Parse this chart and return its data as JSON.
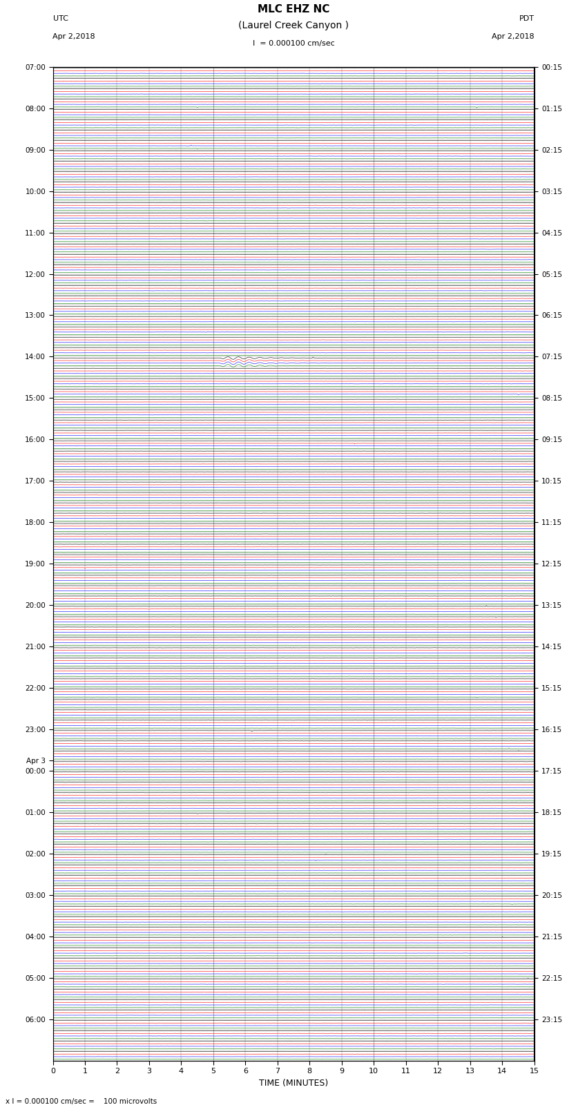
{
  "title_line1": "MLC EHZ NC",
  "title_line2": "(Laurel Creek Canyon )",
  "scale_label": "I  = 0.000100 cm/sec",
  "left_header": "UTC",
  "left_date": "Apr 2,2018",
  "right_header": "PDT",
  "right_date": "Apr 2,2018",
  "bottom_label": "TIME (MINUTES)",
  "footnote": "x I = 0.000100 cm/sec =    100 microvolts",
  "xlabel_ticks": [
    0,
    1,
    2,
    3,
    4,
    5,
    6,
    7,
    8,
    9,
    10,
    11,
    12,
    13,
    14,
    15
  ],
  "utc_labels_sparse": [
    [
      0,
      "07:00"
    ],
    [
      4,
      "08:00"
    ],
    [
      8,
      "09:00"
    ],
    [
      12,
      "10:00"
    ],
    [
      16,
      "11:00"
    ],
    [
      20,
      "12:00"
    ],
    [
      24,
      "13:00"
    ],
    [
      28,
      "14:00"
    ],
    [
      32,
      "15:00"
    ],
    [
      36,
      "16:00"
    ],
    [
      40,
      "17:00"
    ],
    [
      44,
      "18:00"
    ],
    [
      48,
      "19:00"
    ],
    [
      52,
      "20:00"
    ],
    [
      56,
      "21:00"
    ],
    [
      60,
      "22:00"
    ],
    [
      64,
      "23:00"
    ],
    [
      67,
      "Apr 3"
    ],
    [
      68,
      "00:00"
    ],
    [
      72,
      "01:00"
    ],
    [
      76,
      "02:00"
    ],
    [
      80,
      "03:00"
    ],
    [
      84,
      "04:00"
    ],
    [
      88,
      "05:00"
    ],
    [
      92,
      "06:00"
    ]
  ],
  "pdt_labels_sparse": [
    [
      0,
      "00:15"
    ],
    [
      4,
      "01:15"
    ],
    [
      8,
      "02:15"
    ],
    [
      12,
      "03:15"
    ],
    [
      16,
      "04:15"
    ],
    [
      20,
      "05:15"
    ],
    [
      24,
      "06:15"
    ],
    [
      28,
      "07:15"
    ],
    [
      32,
      "08:15"
    ],
    [
      36,
      "09:15"
    ],
    [
      40,
      "10:15"
    ],
    [
      44,
      "11:15"
    ],
    [
      48,
      "12:15"
    ],
    [
      52,
      "13:15"
    ],
    [
      56,
      "14:15"
    ],
    [
      60,
      "15:15"
    ],
    [
      64,
      "16:15"
    ],
    [
      68,
      "17:15"
    ],
    [
      72,
      "18:15"
    ],
    [
      76,
      "19:15"
    ],
    [
      80,
      "20:15"
    ],
    [
      84,
      "21:15"
    ],
    [
      88,
      "22:15"
    ],
    [
      92,
      "23:15"
    ]
  ],
  "trace_colors": [
    "black",
    "red",
    "blue",
    "green"
  ],
  "bg_color": "#ffffff",
  "figsize": [
    8.5,
    16.13
  ],
  "dpi": 100,
  "num_rows": 96,
  "traces_per_row": 4,
  "minutes": 15,
  "samples_per_minute": 100,
  "noise_std": 0.018,
  "earthquake_row": 28,
  "earthquake_col": 2,
  "earthquake_minute": 5.2,
  "earthquake_magnitude": 1.8,
  "earthquake_duration_minutes": 3.5,
  "spikes": [
    [
      3,
      3,
      4.5,
      0.25,
      1
    ],
    [
      3,
      3,
      13.2,
      0.35,
      1
    ],
    [
      7,
      2,
      4.3,
      0.28,
      -1
    ],
    [
      7,
      3,
      4.5,
      0.22,
      1
    ],
    [
      28,
      0,
      8.1,
      0.32,
      -1
    ],
    [
      31,
      2,
      14.5,
      0.25,
      1
    ],
    [
      36,
      1,
      9.4,
      0.22,
      1
    ],
    [
      36,
      3,
      9.5,
      0.18,
      -1
    ],
    [
      52,
      0,
      13.5,
      0.3,
      -1
    ],
    [
      53,
      0,
      13.8,
      0.28,
      1
    ],
    [
      56,
      3,
      14.8,
      0.22,
      1
    ],
    [
      60,
      3,
      13.2,
      0.25,
      1
    ],
    [
      61,
      1,
      13.8,
      0.2,
      -1
    ],
    [
      64,
      0,
      6.2,
      0.35,
      1
    ],
    [
      65,
      3,
      14.2,
      0.28,
      -1
    ],
    [
      66,
      0,
      14.5,
      0.3,
      -1
    ],
    [
      72,
      0,
      4.5,
      0.22,
      1
    ],
    [
      76,
      0,
      8.5,
      0.25,
      -1
    ],
    [
      80,
      3,
      14.3,
      0.2,
      1
    ],
    [
      88,
      0,
      14.8,
      0.3,
      -1
    ],
    [
      52,
      1,
      3.0,
      0.18,
      1
    ],
    [
      48,
      1,
      1.0,
      0.35,
      1
    ],
    [
      76,
      2,
      8.2,
      0.22,
      1
    ],
    [
      84,
      0,
      14.0,
      0.3,
      -1
    ]
  ]
}
